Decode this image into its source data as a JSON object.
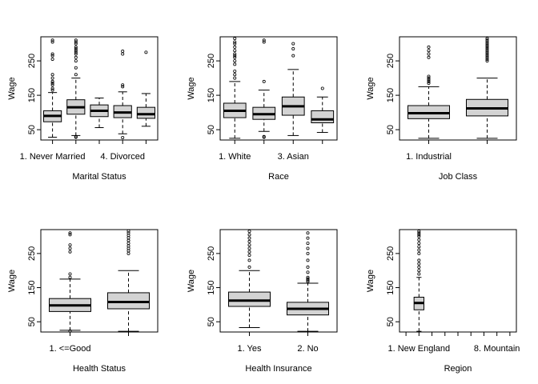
{
  "chart_data": [
    {
      "type": "box",
      "xlabel": "Marital Status",
      "ylabel": "Wage",
      "ylim": [
        20,
        320
      ],
      "yticks": [
        50,
        150,
        250
      ],
      "xtick_labels": [
        "1. Never Married",
        "4. Divorced"
      ],
      "xtick_label_at": [
        0,
        3
      ],
      "boxes": [
        {
          "whisker_low": 28,
          "q1": 73,
          "median": 90,
          "q3": 105,
          "whisker_high": 158,
          "outliers": [
            165,
            170,
            180,
            185,
            190,
            200,
            210,
            255,
            265,
            270,
            305,
            310
          ]
        },
        {
          "whisker_low": 33,
          "q1": 95,
          "median": 115,
          "q3": 137,
          "whisker_high": 200,
          "outliers": [
            28,
            30,
            210,
            230,
            250,
            260,
            270,
            275,
            280,
            285,
            290,
            300,
            305,
            310
          ]
        },
        {
          "whisker_low": 56,
          "q1": 88,
          "median": 105,
          "q3": 122,
          "whisker_high": 142,
          "outliers": []
        },
        {
          "whisker_low": 38,
          "q1": 85,
          "median": 100,
          "q3": 120,
          "whisker_high": 160,
          "outliers": [
            27,
            175,
            180,
            270,
            278
          ]
        },
        {
          "whisker_low": 60,
          "q1": 83,
          "median": 95,
          "q3": 115,
          "whisker_high": 155,
          "outliers": [
            275
          ]
        }
      ]
    },
    {
      "type": "box",
      "xlabel": "Race",
      "ylabel": "Wage",
      "ylim": [
        20,
        320
      ],
      "yticks": [
        50,
        150,
        250
      ],
      "xtick_labels": [
        "1. White",
        "3. Asian"
      ],
      "xtick_label_at": [
        0,
        2
      ],
      "boxes": [
        {
          "whisker_low": 25,
          "q1": 85,
          "median": 105,
          "q3": 127,
          "whisker_high": 190,
          "outliers": [
            200,
            210,
            220,
            240,
            250,
            260,
            265,
            270,
            280,
            290,
            300,
            305,
            315
          ]
        },
        {
          "whisker_low": 45,
          "q1": 80,
          "median": 95,
          "q3": 115,
          "whisker_high": 165,
          "outliers": [
            28,
            30,
            190,
            305,
            310
          ]
        },
        {
          "whisker_low": 33,
          "q1": 92,
          "median": 118,
          "q3": 145,
          "whisker_high": 225,
          "outliers": [
            265,
            285,
            300
          ]
        },
        {
          "whisker_low": 42,
          "q1": 70,
          "median": 80,
          "q3": 105,
          "whisker_high": 145,
          "outliers": [
            170
          ]
        }
      ]
    },
    {
      "type": "box",
      "xlabel": "Job Class",
      "ylabel": "Wage",
      "ylim": [
        20,
        320
      ],
      "yticks": [
        50,
        150,
        250
      ],
      "xtick_labels": [
        "1. Industrial"
      ],
      "xtick_label_at": [
        0
      ],
      "boxes": [
        {
          "whisker_low": 25,
          "q1": 82,
          "median": 98,
          "q3": 120,
          "whisker_high": 175,
          "outliers": [
            185,
            190,
            195,
            200,
            205,
            260,
            270,
            280,
            290
          ]
        },
        {
          "whisker_low": 25,
          "q1": 90,
          "median": 112,
          "q3": 138,
          "whisker_high": 200,
          "outliers": [
            250,
            255,
            260,
            265,
            270,
            275,
            280,
            285,
            290,
            295,
            300,
            305,
            310,
            315
          ]
        }
      ]
    },
    {
      "type": "box",
      "xlabel": "Health Status",
      "ylabel": "Wage",
      "ylim": [
        20,
        320
      ],
      "yticks": [
        50,
        150,
        250
      ],
      "xtick_labels": [
        "1. <=Good"
      ],
      "xtick_label_at": [
        0
      ],
      "boxes": [
        {
          "whisker_low": 25,
          "q1": 80,
          "median": 98,
          "q3": 118,
          "whisker_high": 175,
          "outliers": [
            23,
            180,
            190,
            255,
            265,
            275,
            305,
            310
          ]
        },
        {
          "whisker_low": 22,
          "q1": 88,
          "median": 108,
          "q3": 135,
          "whisker_high": 200,
          "outliers": [
            250,
            258,
            265,
            272,
            280,
            288,
            296,
            303,
            310,
            316
          ]
        }
      ]
    },
    {
      "type": "box",
      "xlabel": "Health Insurance",
      "ylabel": "Wage",
      "ylim": [
        20,
        320
      ],
      "yticks": [
        50,
        150,
        250
      ],
      "xtick_labels": [
        "1. Yes",
        "2. No"
      ],
      "xtick_label_at": [
        0,
        1
      ],
      "boxes": [
        {
          "whisker_low": 33,
          "q1": 95,
          "median": 112,
          "q3": 137,
          "whisker_high": 200,
          "outliers": [
            210,
            230,
            245,
            255,
            265,
            275,
            285,
            295,
            305,
            315
          ]
        },
        {
          "whisker_low": 22,
          "q1": 70,
          "median": 88,
          "q3": 107,
          "whisker_high": 163,
          "outliers": [
            168,
            172,
            176,
            180,
            195,
            210,
            230,
            250,
            265,
            280,
            295,
            310
          ]
        }
      ]
    },
    {
      "type": "box",
      "xlabel": "Region",
      "ylabel": "Wage",
      "ylim": [
        20,
        320
      ],
      "yticks": [
        50,
        150,
        250
      ],
      "xtick_labels": [
        "1. New England",
        "8. Mountain"
      ],
      "xtick_label_at": [
        1,
        7
      ],
      "n_positions": 9,
      "boxes": [
        {
          "position": 1,
          "whisker_low": 22,
          "q1": 85,
          "median": 105,
          "q3": 122,
          "whisker_high": 180,
          "outliers": [
            190,
            200,
            210,
            220,
            230,
            250,
            260,
            270,
            280,
            290,
            300,
            305,
            310,
            315
          ]
        }
      ]
    }
  ]
}
